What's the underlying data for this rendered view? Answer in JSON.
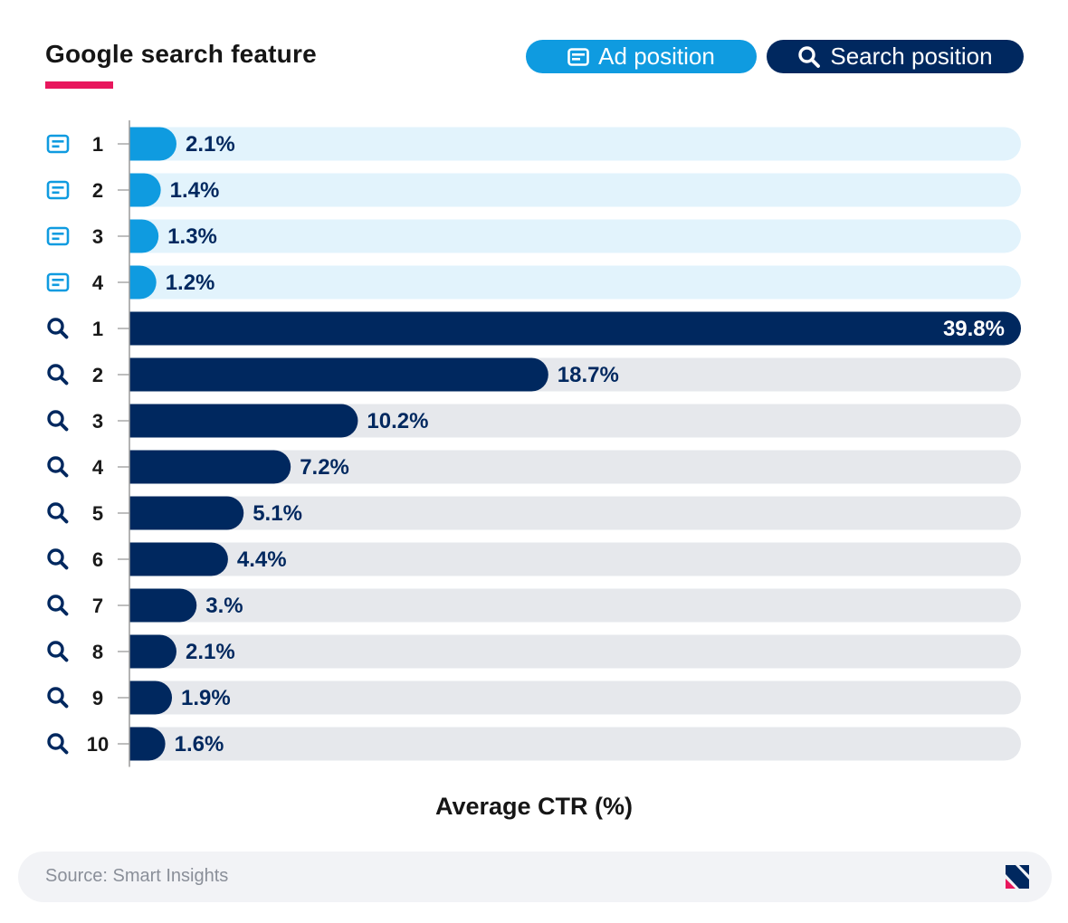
{
  "title": "Google search feature",
  "legend": {
    "ad_label": "Ad position",
    "search_label": "Search position"
  },
  "colors": {
    "ad": "#0f9be0",
    "ad_track": "#e2f3fc",
    "search": "#00285f",
    "search_track": "#e6e8ec",
    "accent": "#e8175d"
  },
  "chart_data": {
    "type": "bar",
    "orientation": "horizontal",
    "title": "Google search feature",
    "xlabel": "Average CTR (%)",
    "ylabel": "",
    "xlim": [
      0,
      39.8
    ],
    "grid": false,
    "legend_position": "top-right",
    "series": [
      {
        "name": "Ad position",
        "categories": [
          "1",
          "2",
          "3",
          "4"
        ],
        "values": [
          2.1,
          1.4,
          1.3,
          1.2
        ],
        "labels": [
          "2.1%",
          "1.4%",
          "1.3%",
          "1.2%"
        ]
      },
      {
        "name": "Search position",
        "categories": [
          "1",
          "2",
          "3",
          "4",
          "5",
          "6",
          "7",
          "8",
          "9",
          "10"
        ],
        "values": [
          39.8,
          18.7,
          10.2,
          7.2,
          5.1,
          4.4,
          3.0,
          2.1,
          1.9,
          1.6
        ],
        "labels": [
          "39.8%",
          "18.7%",
          "10.2%",
          "7.2%",
          "5.1%",
          "4.4%",
          "3.%",
          "2.1%",
          "1.9%",
          "1.6%"
        ]
      }
    ]
  },
  "source": "Source: Smart Insights"
}
